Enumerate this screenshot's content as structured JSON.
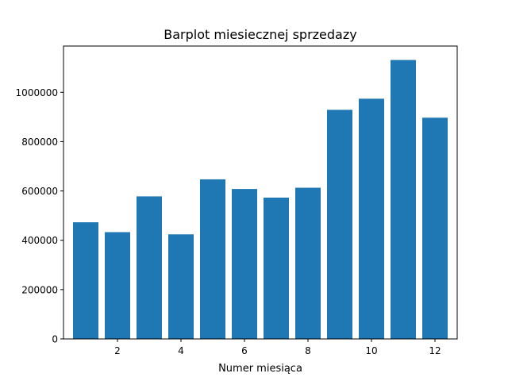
{
  "chart_data": {
    "type": "bar",
    "title": "Barplot miesiecznej sprzedazy",
    "xlabel": "Numer miesiąca",
    "ylabel": "",
    "categories": [
      1,
      2,
      3,
      4,
      5,
      6,
      7,
      8,
      9,
      10,
      11,
      12
    ],
    "values": [
      473000,
      433000,
      578000,
      424000,
      647000,
      608000,
      573000,
      613000,
      929000,
      974000,
      1131000,
      897000
    ],
    "xlim": [
      0.3,
      12.7
    ],
    "ylim": [
      0,
      1187550
    ],
    "xticks": [
      2,
      4,
      6,
      8,
      10,
      12
    ],
    "xtick_labels": [
      "2",
      "4",
      "6",
      "8",
      "10",
      "12"
    ],
    "yticks": [
      0,
      200000,
      400000,
      600000,
      800000,
      1000000
    ],
    "ytick_labels": [
      "0",
      "200000",
      "400000",
      "600000",
      "800000",
      "1000000"
    ],
    "bar_color": "#1f77b4",
    "grid": false,
    "legend": "none"
  }
}
